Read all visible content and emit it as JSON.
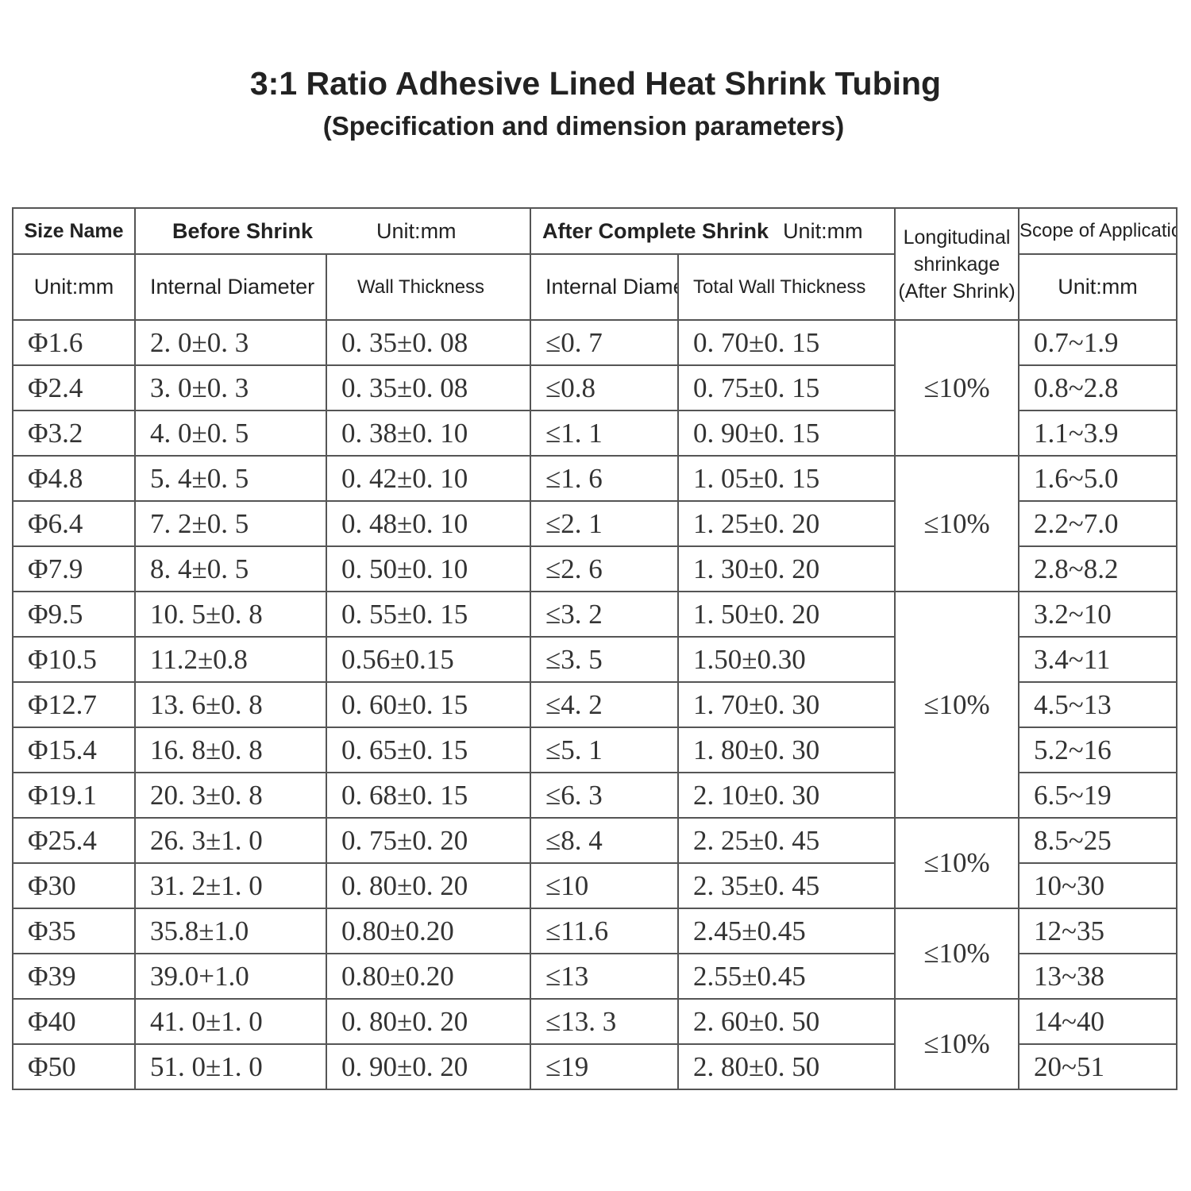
{
  "header": {
    "title": "3:1 Ratio Adhesive Lined Heat Shrink Tubing",
    "subtitle": "(Specification and dimension parameters)"
  },
  "table": {
    "head1": {
      "size_name": "Size Name",
      "before_shrink": "Before Shrink",
      "before_unit": "Unit:mm",
      "after_shrink": "After Complete Shrink",
      "after_unit": "Unit:mm",
      "longitudinal": "Longitudinal shrinkage (After Shrink)",
      "scope": "Scope of Application"
    },
    "head2": [
      "Unit:mm",
      "Internal Diameter",
      "Wall Thickness",
      "Internal Diameter",
      "Total Wall Thickness",
      "Unit:mm"
    ],
    "rows": [
      [
        "Φ1.6",
        "2. 0±0. 3",
        "0. 35±0. 08",
        "≤0. 7",
        "0. 70±0. 15",
        "0.7~1.9"
      ],
      [
        "Φ2.4",
        "3. 0±0. 3",
        "0. 35±0. 08",
        "≤0.8",
        "0. 75±0. 15",
        "0.8~2.8"
      ],
      [
        "Φ3.2",
        "4. 0±0. 5",
        "0. 38±0. 10",
        "≤1. 1",
        "0. 90±0. 15",
        "1.1~3.9"
      ],
      [
        "Φ4.8",
        "5. 4±0. 5",
        "0. 42±0. 10",
        "≤1. 6",
        "1. 05±0. 15",
        "1.6~5.0"
      ],
      [
        "Φ6.4",
        "7. 2±0. 5",
        "0. 48±0. 10",
        "≤2. 1",
        "1. 25±0. 20",
        "2.2~7.0"
      ],
      [
        "Φ7.9",
        "8. 4±0. 5",
        "0. 50±0. 10",
        "≤2. 6",
        "1. 30±0. 20",
        "2.8~8.2"
      ],
      [
        "Φ9.5",
        "10. 5±0. 8",
        "0. 55±0. 15",
        "≤3. 2",
        "1. 50±0. 20",
        "3.2~10"
      ],
      [
        "Φ10.5",
        "11.2±0.8",
        "0.56±0.15",
        "≤3. 5",
        "1.50±0.30",
        "3.4~11"
      ],
      [
        "Φ12.7",
        "13. 6±0. 8",
        "0. 60±0. 15",
        "≤4. 2",
        "1. 70±0. 30",
        "4.5~13"
      ],
      [
        "Φ15.4",
        "16. 8±0. 8",
        "0. 65±0. 15",
        "≤5. 1",
        "1. 80±0. 30",
        "5.2~16"
      ],
      [
        "Φ19.1",
        "20. 3±0. 8",
        "0. 68±0. 15",
        "≤6. 3",
        "2. 10±0. 30",
        "6.5~19"
      ],
      [
        "Φ25.4",
        "26. 3±1. 0",
        "0. 75±0. 20",
        "≤8. 4",
        "2. 25±0. 45",
        "8.5~25"
      ],
      [
        "Φ30",
        "31. 2±1. 0",
        "0. 80±0. 20",
        "≤10",
        "2. 35±0. 45",
        "10~30"
      ],
      [
        "Φ35",
        "35.8±1.0",
        "0.80±0.20",
        "≤11.6",
        "2.45±0.45",
        "12~35"
      ],
      [
        "Φ39",
        "39.0+1.0",
        "0.80±0.20",
        "≤13",
        "2.55±0.45",
        "13~38"
      ],
      [
        "Φ40",
        "41. 0±1. 0",
        "0. 80±0. 20",
        "≤13. 3",
        "2. 60±0. 50",
        "14~40"
      ],
      [
        "Φ50",
        "51. 0±1. 0",
        "0. 90±0. 20",
        "≤19",
        "2. 80±0. 50",
        "20~51"
      ]
    ],
    "longitudinal": [
      "≤10%",
      "≤10%",
      "≤10%",
      "≤10%",
      "≤10%",
      "≤10%"
    ]
  }
}
